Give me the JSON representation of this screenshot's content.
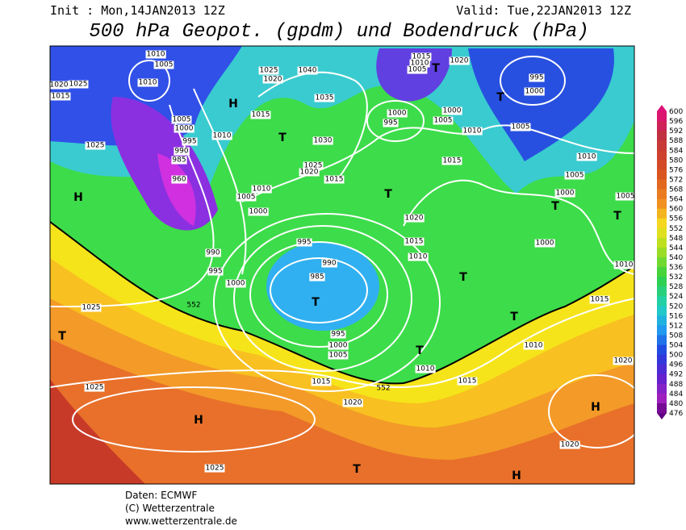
{
  "header": {
    "init": "Init : Mon,14JAN2013 12Z",
    "valid": "Valid: Tue,22JAN2013 12Z",
    "title": "500 hPa Geopot. (gpdm) und Bodendruck (hPa)"
  },
  "colorbar": {
    "labels": [
      600,
      596,
      592,
      588,
      584,
      580,
      576,
      572,
      568,
      564,
      560,
      556,
      552,
      548,
      544,
      540,
      536,
      532,
      528,
      524,
      520,
      516,
      512,
      508,
      504,
      500,
      496,
      492,
      488,
      484,
      480,
      476
    ]
  },
  "map": {
    "isobar_labels": [
      "1010",
      "1005",
      "1010",
      "1020",
      "1025",
      "1015",
      "1005",
      "1000",
      "995",
      "990",
      "985",
      "960",
      "1010",
      "1015",
      "1025",
      "1020",
      "1040",
      "1035",
      "1030",
      "1025",
      "1020",
      "1015",
      "1010",
      "1005",
      "1000",
      "1025",
      "990",
      "995",
      "1000",
      "995",
      "990",
      "985",
      "995",
      "1000",
      "1005",
      "1010",
      "1015",
      "1020",
      "1015",
      "1025",
      "1025",
      "1025",
      "1020",
      "1020",
      "1015",
      "1010",
      "1010",
      "1015",
      "1020",
      "1015",
      "1010",
      "1005",
      "1000",
      "1005",
      "1000",
      "995",
      "1015",
      "1010",
      "1005",
      "1020",
      "995",
      "1000",
      "1010",
      "1005",
      "1000",
      "1000",
      "1005",
      "1010"
    ],
    "height_labels": [
      "552",
      "552"
    ],
    "pressure_centers": [
      "T",
      "T",
      "T",
      "T",
      "T",
      "T",
      "T",
      "T",
      "T",
      "T",
      "T",
      "T",
      "H",
      "H",
      "H",
      "H",
      "H"
    ]
  },
  "footer": {
    "lines": [
      "Daten: ECMWF",
      "(C) Wetterzentrale",
      "www.wetterzentrale.de"
    ]
  }
}
